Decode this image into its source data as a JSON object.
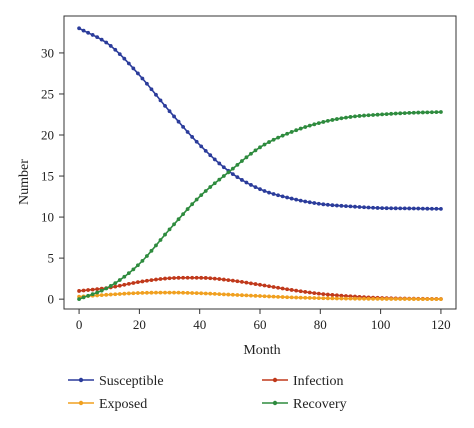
{
  "chart_data": {
    "type": "line",
    "title": "",
    "xlabel": "Month",
    "ylabel": "Number",
    "xlim": [
      -5,
      125
    ],
    "ylim": [
      -1.2,
      34.5
    ],
    "xticks": [
      0,
      20,
      40,
      60,
      80,
      100,
      120
    ],
    "yticks": [
      0,
      5,
      10,
      15,
      20,
      25,
      30
    ],
    "grid": false,
    "legend_position": "bottom",
    "x_step": 1.5,
    "series": [
      {
        "name": "Susceptible",
        "color": "#2b3c9b",
        "x": [
          0,
          10,
          20,
          30,
          40,
          50,
          60,
          70,
          80,
          90,
          100,
          110,
          120
        ],
        "y": [
          33.0,
          31.0,
          27.3,
          22.9,
          18.8,
          15.5,
          13.4,
          12.3,
          11.6,
          11.3,
          11.1,
          11.05,
          11.0
        ]
      },
      {
        "name": "Infection",
        "color": "#c0391b",
        "x": [
          0,
          10,
          20,
          30,
          40,
          50,
          60,
          70,
          80,
          90,
          100,
          110,
          120
        ],
        "y": [
          1.0,
          1.4,
          2.1,
          2.55,
          2.6,
          2.3,
          1.75,
          1.15,
          0.65,
          0.35,
          0.15,
          0.06,
          0.02
        ]
      },
      {
        "name": "Exposed",
        "color": "#f0a020",
        "x": [
          0,
          10,
          20,
          30,
          40,
          50,
          60,
          70,
          80,
          90,
          100,
          110,
          120
        ],
        "y": [
          0.3,
          0.55,
          0.75,
          0.8,
          0.72,
          0.55,
          0.38,
          0.22,
          0.12,
          0.06,
          0.03,
          0.01,
          0.0
        ]
      },
      {
        "name": "Recovery",
        "color": "#2e8b3e",
        "x": [
          0,
          10,
          20,
          30,
          40,
          50,
          60,
          70,
          80,
          90,
          100,
          110,
          120
        ],
        "y": [
          0.0,
          1.5,
          4.3,
          8.5,
          12.5,
          15.6,
          18.5,
          20.3,
          21.5,
          22.2,
          22.5,
          22.7,
          22.8
        ]
      }
    ],
    "legend": [
      {
        "name": "Susceptible",
        "color": "#2b3c9b"
      },
      {
        "name": "Infection",
        "color": "#c0391b"
      },
      {
        "name": "Exposed",
        "color": "#f0a020"
      },
      {
        "name": "Recovery",
        "color": "#2e8b3e"
      }
    ]
  }
}
